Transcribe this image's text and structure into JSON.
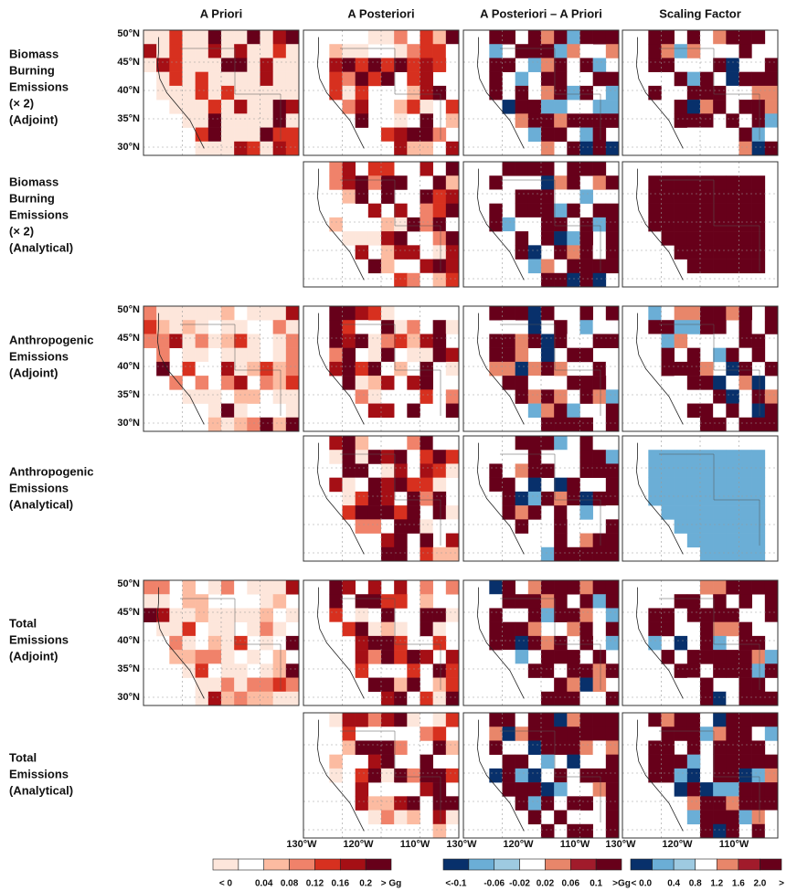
{
  "columns": [
    "A Priori",
    "A Posteriori",
    "A Posteriori – A Priori",
    "Scaling Factor"
  ],
  "rows": [
    [
      "Biomass",
      "Burning",
      "Emissions",
      "(× 2)",
      "(Adjoint)"
    ],
    [
      "Biomass",
      "Burning",
      "Emissions",
      "(× 2)",
      "(Analytical)"
    ],
    [
      "Anthropogenic",
      "Emissions",
      "(Adjoint)"
    ],
    [
      "Anthropogenic",
      "Emissions",
      "(Analytical)"
    ],
    [
      "Total",
      "Emissions",
      "(Adjoint)"
    ],
    [
      "Total",
      "Emissions",
      "(Analytical)"
    ]
  ],
  "latitude_labels": [
    "50°N",
    "45°N",
    "40°N",
    "35°N",
    "30°N"
  ],
  "longitude_labels": [
    "130°W",
    "120°W",
    "110°W"
  ],
  "colorbars": [
    {
      "labels": [
        "< 0",
        "0.04",
        "0.08",
        "0.12",
        "0.16",
        "0.2",
        "> Gg"
      ]
    },
    {
      "labels": [
        "<-0.1",
        "-0.06",
        "-0.02",
        "0.02",
        "0.06",
        "0.1",
        ">Gg"
      ]
    },
    {
      "labels": [
        "< 0.0",
        "0.4",
        "0.8",
        "1.2",
        "1.6",
        "2.0",
        ">"
      ]
    }
  ]
}
